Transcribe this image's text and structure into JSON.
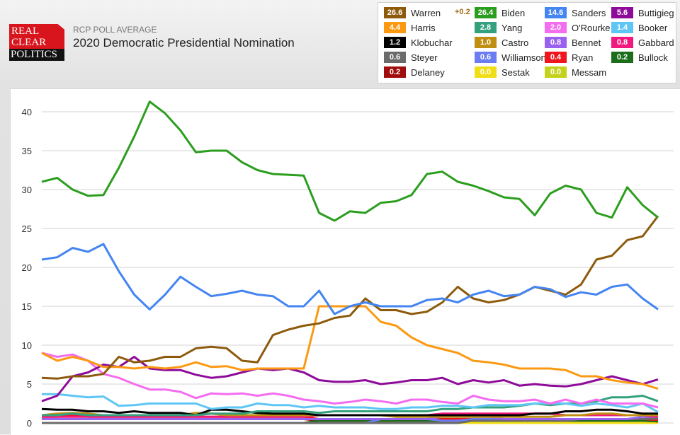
{
  "header": {
    "logo_lines": [
      "REAL",
      "CLEAR",
      "POLITICS"
    ],
    "subtitle": "RCP POLL AVERAGE",
    "title": "2020 Democratic Presidential Nomination"
  },
  "legend": {
    "leader_change": "+0.2",
    "items": [
      {
        "name": "Warren",
        "value": "26.6",
        "color": "#8d5a0c"
      },
      {
        "name": "Biden",
        "value": "26.4",
        "color": "#2c9e1f"
      },
      {
        "name": "Sanders",
        "value": "14.6",
        "color": "#4585f2"
      },
      {
        "name": "Buttigieg",
        "value": "5.6",
        "color": "#8e0b9a"
      },
      {
        "name": "Harris",
        "value": "4.4",
        "color": "#fb9a12"
      },
      {
        "name": "Yang",
        "value": "2.8",
        "color": "#33a07e"
      },
      {
        "name": "O'Rourke",
        "value": "2.0",
        "color": "#f46cf0"
      },
      {
        "name": "Booker",
        "value": "1.4",
        "color": "#5ec6f4"
      },
      {
        "name": "Klobuchar",
        "value": "1.2",
        "color": "#000000"
      },
      {
        "name": "Castro",
        "value": "1.0",
        "color": "#c08f12"
      },
      {
        "name": "Bennet",
        "value": "0.8",
        "color": "#9a61f0"
      },
      {
        "name": "Gabbard",
        "value": "0.8",
        "color": "#f2197e"
      },
      {
        "name": "Steyer",
        "value": "0.6",
        "color": "#6b6b6b"
      },
      {
        "name": "Williamson",
        "value": "0.6",
        "color": "#6a7df2"
      },
      {
        "name": "Ryan",
        "value": "0.4",
        "color": "#f0161d"
      },
      {
        "name": "Bullock",
        "value": "0.2",
        "color": "#1c6e1c"
      },
      {
        "name": "Delaney",
        "value": "0.2",
        "color": "#a10d0d"
      },
      {
        "name": "Sestak",
        "value": "0.0",
        "color": "#f0df16"
      },
      {
        "name": "Messam",
        "value": "0.0",
        "color": "#c4d21c"
      }
    ]
  },
  "chart_data": {
    "type": "line",
    "title": "2020 Democratic Presidential Nomination",
    "xlabel": "",
    "ylabel": "",
    "ylim": [
      0,
      42
    ],
    "yticks": [
      "0",
      "5",
      "10",
      "15",
      "20",
      "25",
      "30",
      "35",
      "40"
    ],
    "grid": true,
    "x": [
      0,
      1,
      2,
      3,
      4,
      5,
      6,
      7,
      8,
      9,
      10,
      11,
      12,
      13,
      14,
      15,
      16,
      17,
      18,
      19,
      20,
      21,
      22,
      23,
      24,
      25,
      26,
      27,
      28,
      29,
      30,
      31,
      32,
      33,
      34,
      35,
      36,
      37,
      38,
      39,
      40
    ],
    "series": [
      {
        "name": "Biden",
        "color": "#2c9e1f",
        "values": [
          31.0,
          31.5,
          30.0,
          29.2,
          29.3,
          32.8,
          36.8,
          41.3,
          39.8,
          37.6,
          34.8,
          35.0,
          35.0,
          33.5,
          32.5,
          32.0,
          31.9,
          31.8,
          27.0,
          26.0,
          27.2,
          27.0,
          28.3,
          28.5,
          29.3,
          32.0,
          32.3,
          31.0,
          30.5,
          29.8,
          29.0,
          28.8,
          26.7,
          29.5,
          30.5,
          30.0,
          27.0,
          26.4,
          30.3,
          28.0,
          26.4
        ]
      },
      {
        "name": "Sanders",
        "color": "#4585f2",
        "values": [
          21.0,
          21.3,
          22.5,
          22.0,
          23.0,
          19.5,
          16.5,
          14.6,
          16.5,
          18.8,
          17.5,
          16.3,
          16.6,
          17.0,
          16.5,
          16.3,
          15.0,
          15.0,
          17.0,
          14.0,
          15.0,
          15.5,
          15.0,
          15.0,
          15.0,
          15.8,
          16.0,
          15.5,
          16.5,
          17.0,
          16.3,
          16.5,
          17.5,
          17.2,
          16.2,
          16.8,
          16.5,
          17.5,
          17.8,
          16.0,
          14.6
        ]
      },
      {
        "name": "Warren",
        "color": "#8d5a0c",
        "values": [
          5.8,
          5.7,
          6.0,
          6.0,
          6.3,
          8.5,
          7.8,
          8.0,
          8.5,
          8.5,
          9.6,
          9.8,
          9.6,
          8.0,
          7.8,
          11.3,
          12.0,
          12.5,
          12.8,
          13.5,
          13.8,
          16.0,
          14.5,
          14.5,
          14.0,
          14.3,
          15.5,
          17.5,
          16.0,
          15.5,
          15.8,
          16.5,
          17.5,
          17.0,
          16.5,
          17.8,
          21.0,
          21.5,
          23.5,
          24.0,
          26.6
        ]
      },
      {
        "name": "Harris",
        "color": "#fb9a12",
        "values": [
          9.0,
          8.0,
          8.5,
          8.0,
          7.2,
          7.2,
          7.0,
          7.2,
          7.0,
          7.2,
          7.8,
          7.2,
          7.3,
          6.8,
          7.0,
          7.0,
          7.0,
          7.0,
          15.0,
          15.0,
          15.0,
          15.0,
          13.0,
          12.5,
          11.0,
          10.0,
          9.5,
          9.0,
          8.0,
          7.8,
          7.5,
          7.0,
          7.0,
          7.0,
          6.8,
          6.0,
          6.0,
          5.5,
          5.2,
          5.0,
          4.4
        ]
      },
      {
        "name": "Buttigieg",
        "color": "#8e0b9a",
        "values": [
          2.8,
          3.5,
          6.0,
          6.5,
          7.5,
          7.2,
          8.5,
          7.0,
          6.8,
          6.8,
          6.2,
          5.8,
          6.0,
          6.5,
          7.0,
          6.8,
          7.0,
          6.5,
          5.5,
          5.3,
          5.3,
          5.5,
          5.0,
          5.2,
          5.5,
          5.5,
          5.8,
          5.0,
          5.5,
          5.2,
          5.5,
          4.8,
          5.0,
          4.8,
          4.7,
          5.0,
          5.5,
          6.0,
          5.5,
          5.0,
          5.6
        ]
      },
      {
        "name": "O'Rourke",
        "color": "#f46cf0",
        "values": [
          9.0,
          8.5,
          8.8,
          8.0,
          6.3,
          5.8,
          5.0,
          4.3,
          4.3,
          4.0,
          3.2,
          3.8,
          3.7,
          3.8,
          3.5,
          3.8,
          3.5,
          3.0,
          2.8,
          2.5,
          2.7,
          3.0,
          2.8,
          2.5,
          3.0,
          3.0,
          2.7,
          2.5,
          3.5,
          3.0,
          2.8,
          2.8,
          3.0,
          2.5,
          3.0,
          2.5,
          3.0,
          2.5,
          2.5,
          2.5,
          2.0
        ]
      },
      {
        "name": "Booker",
        "color": "#5ec6f4",
        "values": [
          3.7,
          3.7,
          3.5,
          3.3,
          3.4,
          2.2,
          2.3,
          2.5,
          2.5,
          2.5,
          2.5,
          1.8,
          2.0,
          2.0,
          2.5,
          2.3,
          2.3,
          2.0,
          2.2,
          2.0,
          2.0,
          2.0,
          1.8,
          1.8,
          2.0,
          2.0,
          2.2,
          2.2,
          2.0,
          2.3,
          2.3,
          2.3,
          2.5,
          2.5,
          2.5,
          2.2,
          2.5,
          2.3,
          2.0,
          2.5,
          1.4
        ]
      },
      {
        "name": "Yang",
        "color": "#33a07e",
        "values": [
          1.0,
          1.0,
          1.2,
          1.0,
          1.0,
          1.0,
          1.0,
          1.0,
          1.0,
          1.0,
          1.0,
          1.2,
          1.2,
          1.2,
          1.5,
          1.5,
          1.5,
          1.5,
          1.3,
          1.5,
          1.5,
          1.5,
          1.5,
          1.5,
          1.5,
          1.5,
          1.8,
          1.8,
          2.0,
          2.0,
          2.0,
          2.2,
          2.5,
          2.3,
          2.5,
          2.5,
          2.8,
          3.3,
          3.3,
          3.5,
          2.8
        ]
      },
      {
        "name": "Klobuchar",
        "color": "#000000",
        "values": [
          1.8,
          1.7,
          1.7,
          1.5,
          1.5,
          1.3,
          1.5,
          1.3,
          1.3,
          1.3,
          1.0,
          1.7,
          1.7,
          1.5,
          1.3,
          1.2,
          1.2,
          1.2,
          1.0,
          1.0,
          1.0,
          1.0,
          1.0,
          1.0,
          1.0,
          1.0,
          1.0,
          1.0,
          1.0,
          1.0,
          1.0,
          1.0,
          1.2,
          1.2,
          1.5,
          1.5,
          1.7,
          1.7,
          1.5,
          1.2,
          1.2
        ]
      },
      {
        "name": "Castro",
        "color": "#c08f12",
        "values": [
          1.0,
          1.2,
          1.3,
          1.2,
          1.0,
          1.0,
          1.0,
          1.0,
          1.0,
          1.0,
          1.3,
          1.2,
          1.0,
          1.0,
          1.0,
          1.0,
          1.0,
          1.0,
          1.0,
          1.0,
          1.0,
          1.0,
          1.0,
          0.8,
          0.8,
          0.8,
          0.8,
          0.8,
          0.8,
          0.8,
          0.8,
          0.8,
          0.8,
          0.8,
          1.0,
          1.0,
          1.2,
          1.2,
          1.0,
          1.0,
          1.0
        ]
      },
      {
        "name": "Gabbard",
        "color": "#f2197e",
        "values": [
          0.8,
          0.8,
          0.8,
          0.8,
          0.8,
          0.8,
          0.8,
          0.8,
          0.8,
          0.8,
          0.8,
          0.8,
          0.8,
          0.8,
          0.8,
          0.8,
          0.8,
          0.8,
          1.0,
          1.0,
          1.0,
          1.0,
          1.0,
          1.0,
          1.0,
          1.0,
          1.2,
          1.2,
          1.2,
          1.2,
          1.2,
          1.2,
          1.2,
          1.2,
          1.0,
          1.0,
          1.0,
          1.0,
          1.0,
          1.0,
          0.8
        ]
      },
      {
        "name": "Bennet",
        "color": "#9a61f0",
        "values": [
          0.5,
          0.5,
          0.5,
          0.5,
          0.5,
          0.5,
          0.5,
          0.5,
          0.5,
          0.5,
          0.5,
          0.5,
          0.5,
          0.5,
          0.5,
          0.5,
          0.5,
          0.5,
          0.5,
          0.5,
          0.5,
          0.5,
          0.5,
          0.5,
          0.5,
          0.5,
          0.8,
          0.8,
          0.8,
          0.8,
          0.5,
          0.5,
          0.5,
          0.5,
          0.5,
          0.5,
          0.5,
          0.5,
          0.5,
          0.8,
          0.8
        ]
      },
      {
        "name": "Steyer",
        "color": "#6b6b6b",
        "values": [
          0.0,
          0.0,
          0.0,
          0.0,
          0.0,
          0.0,
          0.0,
          0.0,
          0.0,
          0.0,
          0.0,
          0.0,
          0.0,
          0.0,
          0.0,
          0.0,
          0.0,
          0.0,
          0.0,
          0.0,
          0.0,
          0.0,
          0.0,
          0.0,
          0.0,
          0.0,
          0.0,
          0.0,
          0.3,
          0.3,
          0.3,
          0.3,
          0.3,
          0.3,
          0.3,
          0.5,
          0.5,
          0.5,
          0.5,
          0.5,
          0.6
        ]
      },
      {
        "name": "Williamson",
        "color": "#6a7df2",
        "values": [
          0.0,
          0.0,
          0.0,
          0.0,
          0.0,
          0.0,
          0.0,
          0.0,
          0.0,
          0.0,
          0.0,
          0.0,
          0.0,
          0.0,
          0.0,
          0.0,
          0.0,
          0.0,
          0.0,
          0.0,
          0.0,
          0.0,
          0.5,
          0.5,
          0.5,
          0.5,
          0.3,
          0.3,
          0.5,
          0.5,
          0.5,
          0.5,
          0.5,
          0.5,
          0.5,
          0.5,
          0.5,
          0.5,
          0.5,
          0.5,
          0.6
        ]
      },
      {
        "name": "Ryan",
        "color": "#f0161d",
        "values": [
          0.8,
          0.8,
          1.0,
          0.8,
          0.8,
          0.8,
          0.8,
          0.8,
          0.8,
          0.8,
          0.8,
          0.8,
          0.8,
          0.8,
          0.8,
          0.8,
          0.8,
          0.8,
          0.5,
          0.5,
          0.5,
          0.5,
          0.5,
          0.5,
          0.5,
          0.5,
          0.5,
          0.5,
          0.5,
          0.5,
          0.5,
          0.5,
          0.5,
          0.5,
          0.5,
          0.5,
          0.5,
          0.5,
          0.5,
          0.5,
          0.4
        ]
      },
      {
        "name": "Bullock",
        "color": "#1c6e1c",
        "values": [
          0.0,
          0.0,
          0.0,
          0.0,
          0.0,
          0.0,
          0.0,
          0.0,
          0.0,
          0.0,
          0.0,
          0.0,
          0.0,
          0.0,
          0.0,
          0.0,
          0.0,
          0.0,
          0.3,
          0.3,
          0.3,
          0.3,
          0.3,
          0.3,
          0.3,
          0.3,
          0.3,
          0.3,
          0.3,
          0.3,
          0.3,
          0.3,
          0.3,
          0.3,
          0.3,
          0.3,
          0.3,
          0.3,
          0.3,
          0.3,
          0.2
        ]
      },
      {
        "name": "Delaney",
        "color": "#a10d0d",
        "values": [
          0.5,
          0.5,
          0.5,
          0.5,
          0.5,
          0.5,
          0.5,
          0.5,
          0.5,
          0.5,
          0.5,
          0.5,
          0.5,
          0.5,
          0.5,
          0.5,
          0.5,
          0.5,
          0.3,
          0.3,
          0.3,
          0.3,
          0.3,
          0.3,
          0.3,
          0.3,
          0.3,
          0.3,
          0.3,
          0.3,
          0.3,
          0.3,
          0.3,
          0.3,
          0.3,
          0.3,
          0.3,
          0.3,
          0.3,
          0.3,
          0.2
        ]
      },
      {
        "name": "Sestak",
        "color": "#f0df16",
        "values": [
          null,
          null,
          null,
          null,
          null,
          null,
          null,
          null,
          null,
          null,
          null,
          null,
          null,
          null,
          null,
          null,
          null,
          null,
          null,
          null,
          null,
          null,
          0.0,
          0.0,
          0.0,
          0.0,
          0.0,
          0.0,
          0.0,
          0.0,
          0.0,
          0.0,
          0.0,
          0.0,
          0.0,
          0.0,
          0.0,
          0.0,
          0.0,
          0.0,
          0.0
        ]
      },
      {
        "name": "Messam",
        "color": "#c4d21c",
        "values": [
          0.0,
          0.0,
          0.0,
          0.0,
          0.0,
          0.0,
          0.0,
          0.0,
          0.0,
          0.0,
          0.0,
          0.0,
          0.0,
          0.0,
          0.0,
          0.0,
          0.0,
          0.0,
          0.0,
          0.0,
          0.0,
          0.0,
          0.0,
          0.0,
          0.0,
          0.0,
          0.0,
          0.0,
          0.0,
          0.0,
          0.0,
          0.0,
          0.0,
          0.0,
          0.0,
          0.0,
          0.0,
          0.0,
          0.0,
          0.0,
          0.0
        ]
      }
    ]
  }
}
